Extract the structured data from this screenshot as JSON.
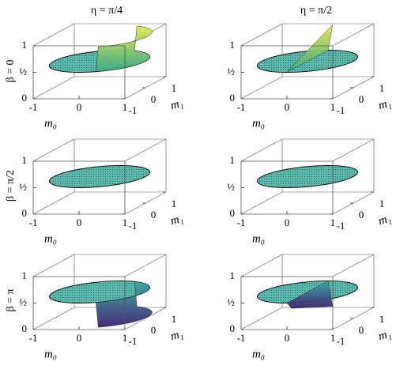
{
  "columns": [
    "η = π/4",
    "η = π/2"
  ],
  "rows": [
    "β = 0",
    "β = π/2",
    "β = π"
  ],
  "chart_data": [
    {
      "type": "surface",
      "xlabel": "m₀",
      "ylabel": "m₁",
      "xlim": [
        -1,
        1
      ],
      "ylim": [
        -1,
        1
      ],
      "zlim": [
        0,
        1
      ],
      "xticks": [
        -1,
        0,
        1
      ],
      "yticks": [
        -1,
        0,
        1
      ],
      "zticks": [
        0,
        {
          "value": 0.5,
          "label": "½"
        },
        1
      ]
    },
    {
      "type": "surface",
      "xlabel": "m₀",
      "ylabel": "m₁",
      "xlim": [
        -1,
        1
      ],
      "ylim": [
        -1,
        1
      ],
      "zlim": [
        0,
        1
      ],
      "xticks": [
        -1,
        0,
        1
      ],
      "yticks": [
        -1,
        0,
        1
      ],
      "zticks": [
        0,
        {
          "value": 0.5,
          "label": "½"
        },
        1
      ]
    },
    {
      "type": "surface",
      "xlabel": "m₀",
      "ylabel": "m₁",
      "xlim": [
        -1,
        1
      ],
      "ylim": [
        -1,
        1
      ],
      "zlim": [
        0,
        1
      ],
      "xticks": [
        -1,
        0,
        1
      ],
      "yticks": [
        -1,
        0,
        1
      ],
      "zticks": [
        0,
        {
          "value": 0.5,
          "label": "½"
        },
        1
      ]
    },
    {
      "type": "surface",
      "xlabel": "m₀",
      "ylabel": "m₁",
      "xlim": [
        -1,
        1
      ],
      "ylim": [
        -1,
        1
      ],
      "zlim": [
        0,
        1
      ],
      "xticks": [
        -1,
        0,
        1
      ],
      "yticks": [
        -1,
        0,
        1
      ],
      "zticks": [
        0,
        {
          "value": 0.5,
          "label": "½"
        },
        1
      ]
    },
    {
      "type": "surface",
      "xlabel": "m₀",
      "ylabel": "m₁",
      "xlim": [
        -1,
        1
      ],
      "ylim": [
        -1,
        1
      ],
      "zlim": [
        0,
        1
      ],
      "xticks": [
        -1,
        0,
        1
      ],
      "yticks": [
        -1,
        0,
        1
      ],
      "zticks": [
        0,
        {
          "value": 0.5,
          "label": "½"
        },
        1
      ]
    },
    {
      "type": "surface",
      "xlabel": "m₀",
      "ylabel": "m₁",
      "xlim": [
        -1,
        1
      ],
      "ylim": [
        -1,
        1
      ],
      "zlim": [
        0,
        1
      ],
      "xticks": [
        -1,
        0,
        1
      ],
      "yticks": [
        -1,
        0,
        1
      ],
      "zticks": [
        0,
        {
          "value": 0.5,
          "label": "½"
        },
        1
      ]
    }
  ]
}
